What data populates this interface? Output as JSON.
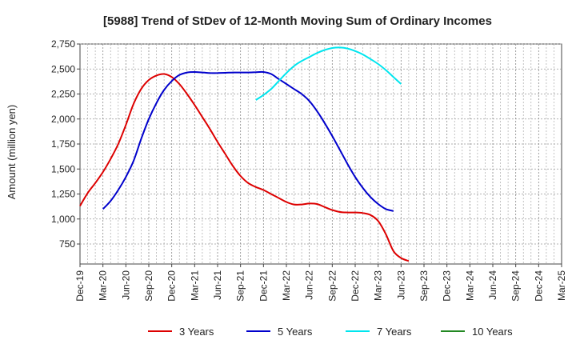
{
  "chart_data": {
    "type": "line",
    "title": "[5988]  Trend of StDev of 12-Month Moving Sum of Ordinary Incomes",
    "ylabel": "Amount (million yen)",
    "xlabel": "",
    "ylim": [
      550,
      2750
    ],
    "yticks": [
      750,
      1000,
      1250,
      1500,
      1750,
      2000,
      2250,
      2500,
      2750
    ],
    "ytick_labels": [
      "750",
      "1,000",
      "1,250",
      "1,500",
      "1,750",
      "2,000",
      "2,250",
      "2,500",
      "2,750"
    ],
    "xticks": [
      "Dec-19",
      "Mar-20",
      "Jun-20",
      "Sep-20",
      "Dec-20",
      "Mar-21",
      "Jun-21",
      "Sep-21",
      "Dec-21",
      "Mar-22",
      "Jun-22",
      "Sep-22",
      "Dec-22",
      "Mar-23",
      "Jun-23",
      "Sep-23",
      "Dec-23",
      "Mar-24",
      "Jun-24",
      "Sep-24",
      "Dec-24",
      "Mar-25"
    ],
    "grid": true,
    "legend_position": "bottom",
    "series": [
      {
        "name": "3 Years",
        "color": "#dd0000",
        "points": [
          [
            0,
            1130
          ],
          [
            1,
            1260
          ],
          [
            2,
            1360
          ],
          [
            3,
            1470
          ],
          [
            4,
            1600
          ],
          [
            5,
            1750
          ],
          [
            6,
            1940
          ],
          [
            7,
            2150
          ],
          [
            8,
            2300
          ],
          [
            9,
            2390
          ],
          [
            10,
            2435
          ],
          [
            11,
            2450
          ],
          [
            12,
            2420
          ],
          [
            13,
            2350
          ],
          [
            14,
            2250
          ],
          [
            15,
            2140
          ],
          [
            16,
            2020
          ],
          [
            17,
            1900
          ],
          [
            18,
            1770
          ],
          [
            19,
            1650
          ],
          [
            20,
            1530
          ],
          [
            21,
            1430
          ],
          [
            22,
            1360
          ],
          [
            23,
            1320
          ],
          [
            24,
            1290
          ],
          [
            25,
            1250
          ],
          [
            26,
            1210
          ],
          [
            27,
            1170
          ],
          [
            28,
            1145
          ],
          [
            29,
            1145
          ],
          [
            30,
            1155
          ],
          [
            31,
            1150
          ],
          [
            32,
            1120
          ],
          [
            33,
            1090
          ],
          [
            34,
            1070
          ],
          [
            35,
            1065
          ],
          [
            36,
            1065
          ],
          [
            37,
            1060
          ],
          [
            38,
            1040
          ],
          [
            39,
            980
          ],
          [
            40,
            850
          ],
          [
            41,
            680
          ],
          [
            42,
            610
          ],
          [
            43,
            580
          ]
        ]
      },
      {
        "name": "5 Years",
        "color": "#0000cc",
        "points": [
          [
            3,
            1100
          ],
          [
            4,
            1180
          ],
          [
            5,
            1290
          ],
          [
            6,
            1420
          ],
          [
            7,
            1580
          ],
          [
            8,
            1800
          ],
          [
            9,
            2000
          ],
          [
            10,
            2160
          ],
          [
            11,
            2290
          ],
          [
            12,
            2380
          ],
          [
            13,
            2440
          ],
          [
            14,
            2465
          ],
          [
            15,
            2470
          ],
          [
            16,
            2465
          ],
          [
            17,
            2460
          ],
          [
            18,
            2460
          ],
          [
            19,
            2462
          ],
          [
            20,
            2465
          ],
          [
            21,
            2465
          ],
          [
            22,
            2465
          ],
          [
            23,
            2468
          ],
          [
            24,
            2470
          ],
          [
            25,
            2450
          ],
          [
            26,
            2400
          ],
          [
            27,
            2350
          ],
          [
            28,
            2300
          ],
          [
            29,
            2250
          ],
          [
            30,
            2180
          ],
          [
            31,
            2080
          ],
          [
            32,
            1960
          ],
          [
            33,
            1830
          ],
          [
            34,
            1690
          ],
          [
            35,
            1550
          ],
          [
            36,
            1420
          ],
          [
            37,
            1310
          ],
          [
            38,
            1220
          ],
          [
            39,
            1150
          ],
          [
            40,
            1100
          ],
          [
            41,
            1080
          ]
        ]
      },
      {
        "name": "7 Years",
        "color": "#00e5ee",
        "points": [
          [
            23,
            2190
          ],
          [
            24,
            2240
          ],
          [
            25,
            2300
          ],
          [
            26,
            2380
          ],
          [
            27,
            2460
          ],
          [
            28,
            2530
          ],
          [
            29,
            2580
          ],
          [
            30,
            2620
          ],
          [
            31,
            2660
          ],
          [
            32,
            2690
          ],
          [
            33,
            2710
          ],
          [
            34,
            2715
          ],
          [
            35,
            2705
          ],
          [
            36,
            2680
          ],
          [
            37,
            2645
          ],
          [
            38,
            2600
          ],
          [
            39,
            2550
          ],
          [
            40,
            2490
          ],
          [
            41,
            2420
          ],
          [
            42,
            2350
          ]
        ]
      },
      {
        "name": "10 Years",
        "color": "#228822",
        "points": []
      }
    ]
  }
}
